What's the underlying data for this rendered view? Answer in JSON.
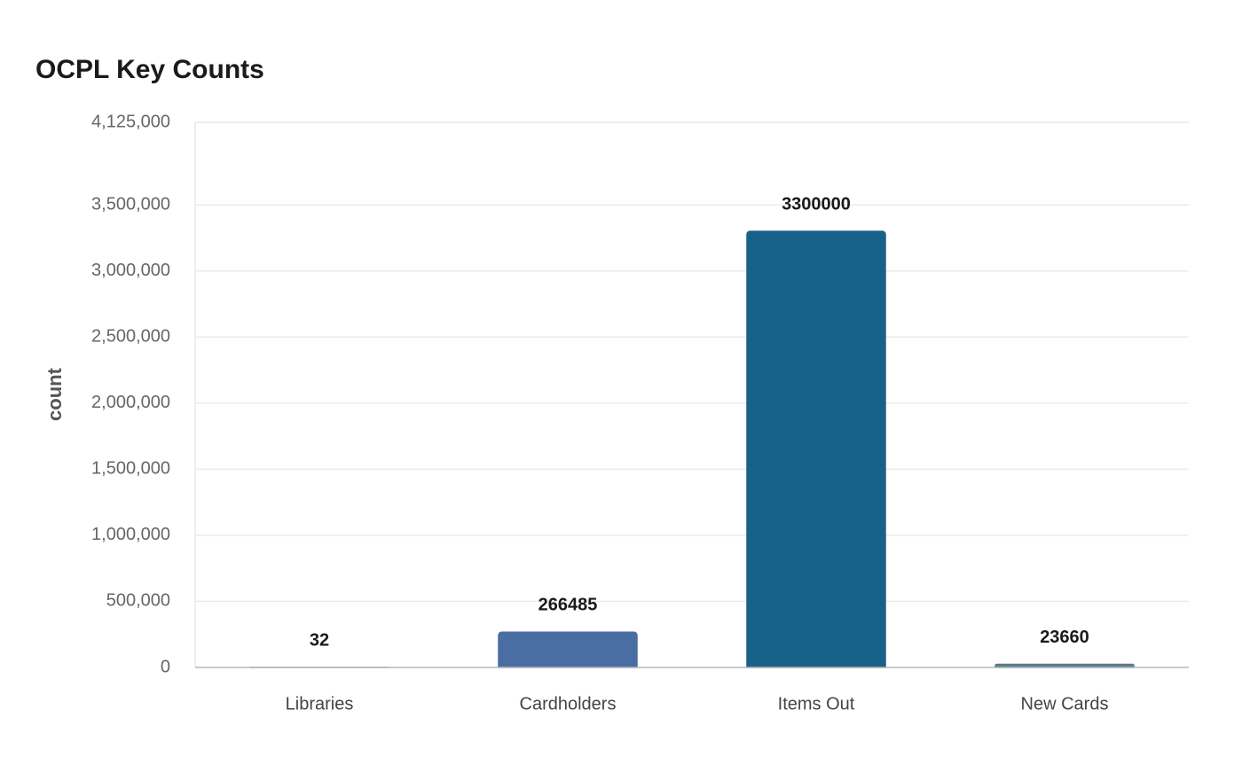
{
  "chart_data": {
    "type": "bar",
    "title": "OCPL Key Counts",
    "y_label": "count",
    "categories": [
      "Libraries",
      "Cardholders",
      "Items Out",
      "New Cards"
    ],
    "values": [
      32,
      266485,
      3300000,
      23660
    ],
    "colors": [
      "#7a8a93",
      "#4a6da3",
      "#186189",
      "#5a7a8c"
    ],
    "ylim": [
      0,
      4125000
    ],
    "yticks": [
      0,
      {
        "value": 500000,
        "label": "500,000"
      },
      {
        "value": 1000000,
        "label": "1,000,000"
      },
      {
        "value": 1500000,
        "label": "1,500,000"
      },
      {
        "value": 2000000,
        "label": "2,000,000"
      },
      {
        "value": 2500000,
        "label": "2,500,000"
      },
      {
        "value": 3000000,
        "label": "3,000,000"
      },
      {
        "value": 3500000,
        "label": "3,500,000"
      },
      {
        "value": 4125000,
        "label": "4,125,000"
      }
    ],
    "grid": true
  }
}
